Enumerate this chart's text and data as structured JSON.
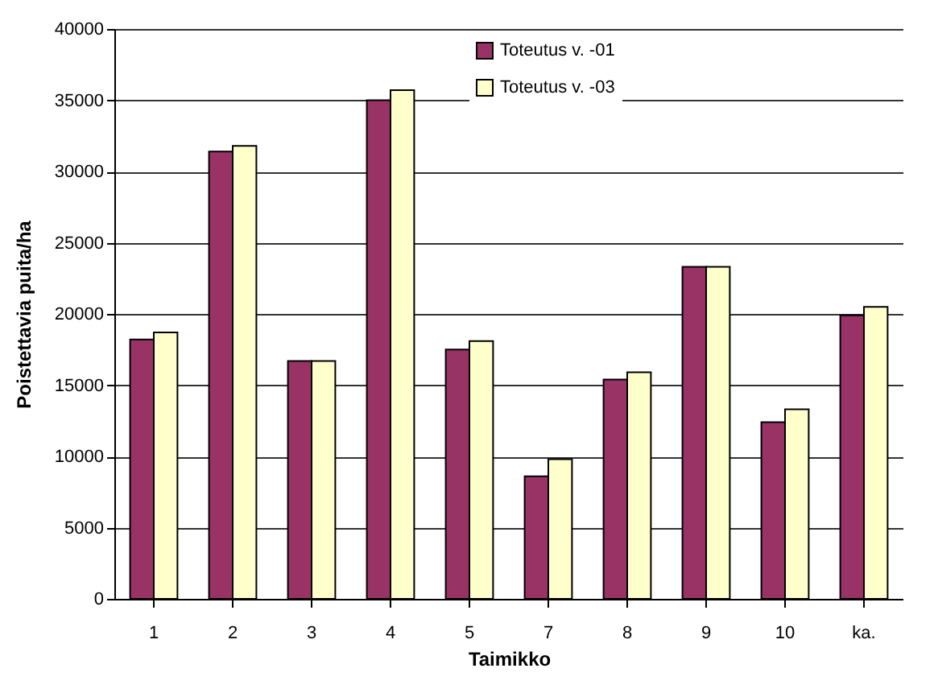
{
  "chart_data": {
    "type": "bar",
    "xlabel": "Taimikko",
    "ylabel": "Poistettavia puita/ha",
    "categories": [
      "1",
      "2",
      "3",
      "4",
      "5",
      "7",
      "8",
      "9",
      "10",
      "ka."
    ],
    "series": [
      {
        "name": "Toteutus v. -01",
        "color": "#993366",
        "values": [
          18200,
          31400,
          16700,
          35000,
          17500,
          8600,
          15400,
          23300,
          12400,
          19900
        ]
      },
      {
        "name": "Toteutus v. -03",
        "color": "#ffffcc",
        "values": [
          18700,
          31800,
          16700,
          35700,
          18100,
          9800,
          15900,
          23300,
          13300,
          20500
        ]
      }
    ],
    "ylim": [
      0,
      40000
    ],
    "yticks": [
      0,
      5000,
      10000,
      15000,
      20000,
      25000,
      30000,
      35000,
      40000
    ],
    "grid": "y",
    "legend": "top"
  }
}
